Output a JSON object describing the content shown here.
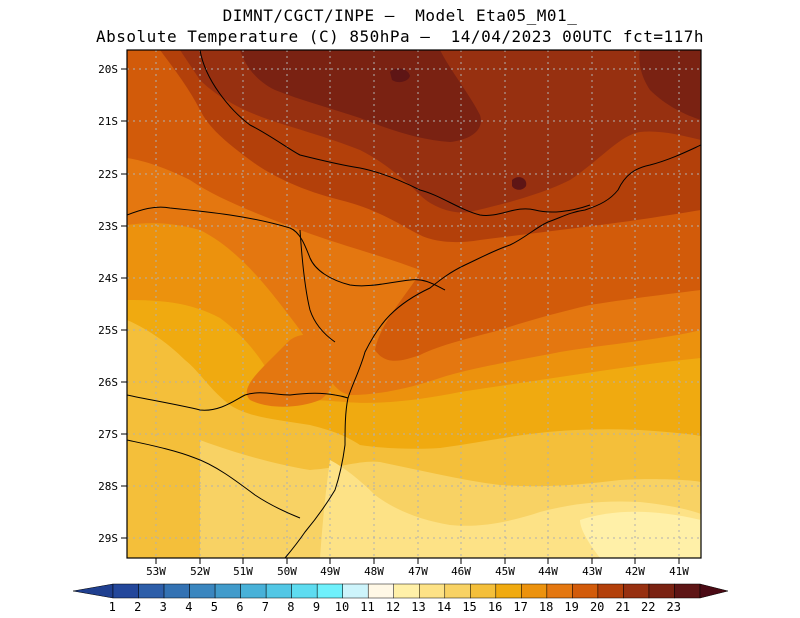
{
  "title_line1": "DIMNT/CGCT/INPE —  Model Eta05_M01_",
  "title_line2": "Absolute Temperature (C) 850hPa —  14/04/2023 00UTC fct=117h",
  "lat_ticks": [
    "20S",
    "21S",
    "22S",
    "23S",
    "24S",
    "25S",
    "26S",
    "27S",
    "28S",
    "29S"
  ],
  "lon_ticks": [
    "53W",
    "52W",
    "51W",
    "50W",
    "49W",
    "48W",
    "47W",
    "46W",
    "45W",
    "44W",
    "43W",
    "42W",
    "41W"
  ],
  "colorbar": {
    "labels": [
      "1",
      "2",
      "3",
      "4",
      "5",
      "6",
      "7",
      "8",
      "9",
      "10",
      "11",
      "12",
      "13",
      "14",
      "15",
      "16",
      "17",
      "18",
      "19",
      "20",
      "21",
      "22",
      "23"
    ],
    "under_color": "#1f3f8f",
    "over_color": "#4a0a14",
    "colors": [
      "#23479b",
      "#2d5ea9",
      "#3372b3",
      "#3a86bf",
      "#419bcb",
      "#48b1d8",
      "#52c7e5",
      "#5edcf0",
      "#6ff0fb",
      "#cdf4fb",
      "#fff8e6",
      "#fff0a8",
      "#fde286",
      "#f8d264",
      "#f4bf3a",
      "#f0aa10",
      "#ec920d",
      "#e47710",
      "#d25b0a",
      "#b3400a",
      "#973010",
      "#7a2212",
      "#5e1515"
    ]
  },
  "colors": {
    "grid": "#b0b0b0",
    "coast": "#000000"
  }
}
